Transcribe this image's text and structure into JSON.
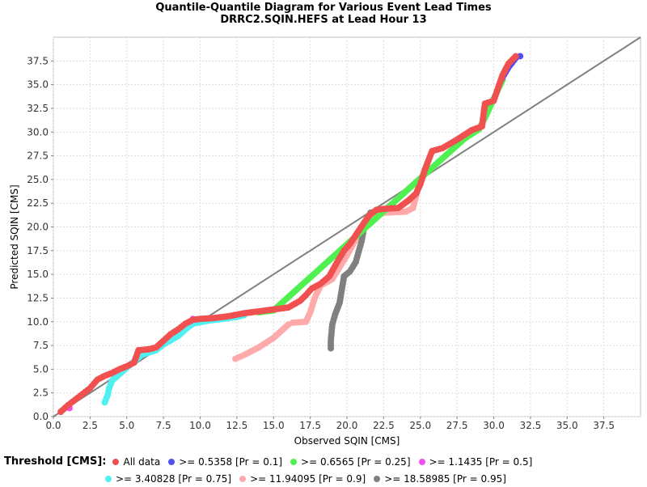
{
  "chart_data": {
    "type": "scatter",
    "title": "Quantile-Quantile Diagram for Various Event Lead Times",
    "subtitle": "DRRC2.SQIN.HEFS at Lead Hour 13",
    "xlabel": "Observed SQIN [CMS]",
    "ylabel": "Predicted SQIN [CMS]",
    "xlim": [
      0,
      40
    ],
    "ylim": [
      0,
      40
    ],
    "x_ticks": [
      "0.0",
      "2.5",
      "5.0",
      "7.5",
      "10.0",
      "12.5",
      "15.0",
      "17.5",
      "20.0",
      "22.5",
      "25.0",
      "27.5",
      "30.0",
      "32.5",
      "35.0",
      "37.5"
    ],
    "y_ticks": [
      "0.0",
      "2.5",
      "5.0",
      "7.5",
      "10.0",
      "12.5",
      "15.0",
      "17.5",
      "20.0",
      "22.5",
      "25.0",
      "27.5",
      "30.0",
      "32.5",
      "35.0",
      "37.5"
    ],
    "grid": true,
    "reference_line": {
      "from": [
        0,
        0
      ],
      "to": [
        40,
        40
      ],
      "color": "#808080"
    },
    "legend_title": "Threshold [CMS]:",
    "legend_position": "bottom",
    "series": [
      {
        "name": "All data",
        "color": "#f05050",
        "x": [
          0.5,
          1.0,
          1.5,
          2.0,
          2.5,
          3.0,
          3.5,
          4.0,
          4.5,
          5.0,
          5.5,
          5.8,
          6.5,
          7.0,
          7.5,
          8.0,
          8.5,
          9.0,
          9.5,
          10.0,
          11.0,
          12.0,
          13.0,
          14.0,
          15.0,
          16.0,
          16.8,
          17.2,
          17.6,
          18.2,
          18.8,
          19.3,
          19.8,
          20.2,
          20.8,
          21.5,
          22.0,
          22.5,
          23.5,
          24.2,
          24.7,
          25.0,
          25.3,
          25.8,
          26.5,
          27.5,
          28.5,
          29.2,
          29.4,
          29.6,
          30.0,
          30.3,
          30.6,
          31.0,
          31.5
        ],
        "y": [
          0.5,
          1.2,
          1.8,
          2.4,
          3.0,
          3.9,
          4.3,
          4.6,
          5.0,
          5.3,
          5.7,
          7.0,
          7.1,
          7.3,
          8.0,
          8.7,
          9.2,
          9.8,
          10.2,
          10.3,
          10.4,
          10.6,
          10.9,
          11.1,
          11.3,
          11.5,
          12.2,
          12.8,
          13.5,
          14.0,
          14.8,
          16.2,
          17.5,
          18.2,
          19.6,
          21.2,
          21.8,
          21.9,
          22.0,
          22.8,
          23.5,
          24.5,
          26.0,
          28.0,
          28.3,
          29.2,
          30.2,
          30.6,
          33.0,
          33.1,
          33.3,
          34.7,
          36.0,
          37.2,
          38.0
        ]
      },
      {
        "name": ">= 0.5358 [Pr = 0.1]",
        "color": "#5050f0",
        "x": [
          30.5,
          31.0,
          31.5,
          31.8
        ],
        "y": [
          35.5,
          36.8,
          37.8,
          38.0
        ]
      },
      {
        "name": ">= 0.6565 [Pr = 0.25]",
        "color": "#50f050",
        "x": [
          14.0,
          15.0,
          28.0,
          29.0,
          29.4,
          30.3,
          30.6
        ],
        "y": [
          11.0,
          11.2,
          29.3,
          30.3,
          31.5,
          34.5,
          35.5
        ]
      },
      {
        "name": ">= 1.1435 [Pr = 0.5]",
        "color": "#f050f0",
        "x": [
          1.1,
          9.5
        ],
        "y": [
          0.9,
          10.3
        ]
      },
      {
        "name": ">= 3.40828 [Pr = 0.75]",
        "color": "#50f0f0",
        "x": [
          3.5,
          3.7,
          3.8,
          4.0,
          6.0,
          7.0,
          7.5,
          8.5,
          9.0,
          9.5,
          10.5,
          11.5,
          12.0,
          12.5,
          13.0
        ],
        "y": [
          1.5,
          2.3,
          3.0,
          3.8,
          6.5,
          7.0,
          7.6,
          8.5,
          9.2,
          9.8,
          10.1,
          10.3,
          10.4,
          10.5,
          10.7
        ]
      },
      {
        "name": ">= 11.94095 [Pr = 0.9]",
        "color": "#ffaaaa",
        "x": [
          12.4,
          13.0,
          14.0,
          15.0,
          15.5,
          16.0,
          16.3,
          17.2,
          17.5,
          17.8,
          18.2,
          19.0,
          20.0,
          21.5,
          22.5,
          24.0,
          24.5,
          25.0
        ],
        "y": [
          6.1,
          6.5,
          7.3,
          8.3,
          9.0,
          9.7,
          9.9,
          10.0,
          11.0,
          12.5,
          13.8,
          14.5,
          17.0,
          21.2,
          21.5,
          21.6,
          22.0,
          25.0
        ]
      },
      {
        "name": ">= 18.58985 [Pr = 0.95]",
        "color": "#808080",
        "x": [
          18.9,
          18.9,
          19.0,
          19.2,
          19.5,
          19.8,
          20.2,
          20.6,
          21.0,
          21.2,
          21.6
        ],
        "y": [
          7.2,
          8.0,
          9.7,
          10.8,
          12.0,
          14.8,
          15.3,
          16.3,
          18.5,
          20.2,
          21.5
        ]
      }
    ]
  }
}
